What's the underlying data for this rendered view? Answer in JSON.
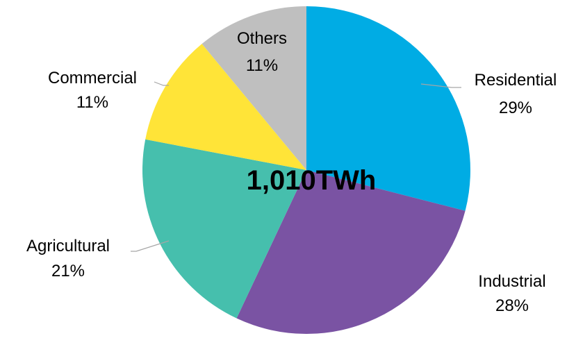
{
  "chart_data": {
    "type": "pie",
    "center_label": "1,010TWh",
    "slices": [
      {
        "name": "Residential",
        "value": 29,
        "pct_label": "29%",
        "color": "#00ace4"
      },
      {
        "name": "Industrial",
        "value": 28,
        "pct_label": "28%",
        "color": "#7a53a3"
      },
      {
        "name": "Agricultural",
        "value": 21,
        "pct_label": "21%",
        "color": "#46bfad"
      },
      {
        "name": "Commercial",
        "value": 11,
        "pct_label": "11%",
        "color": "#ffe438"
      },
      {
        "name": "Others",
        "value": 11,
        "pct_label": "11%",
        "color": "#bfbfbf"
      }
    ]
  }
}
